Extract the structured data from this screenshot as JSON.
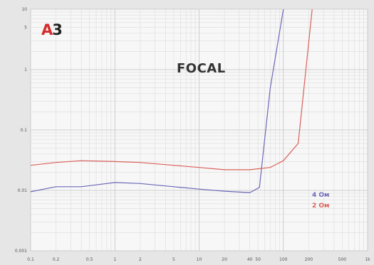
{
  "logo": {
    "letter": "A",
    "digit": "3"
  },
  "colors": {
    "series_4": "#6b68b8",
    "series_2": "#d9605a",
    "grid": "#c2c2c2",
    "text": "#555555"
  },
  "chart_data": {
    "type": "line",
    "title": "FOCAL",
    "xlabel": "",
    "ylabel": "",
    "x_scale": "log",
    "y_scale": "log",
    "xlim": [
      0.1,
      1000
    ],
    "ylim": [
      0.001,
      10
    ],
    "x_ticks": [
      {
        "v": 0.1,
        "label": "0.1"
      },
      {
        "v": 0.2,
        "label": "0.2"
      },
      {
        "v": 0.5,
        "label": "0.5"
      },
      {
        "v": 1,
        "label": "1"
      },
      {
        "v": 2,
        "label": "2"
      },
      {
        "v": 5,
        "label": "5"
      },
      {
        "v": 10,
        "label": "10"
      },
      {
        "v": 20,
        "label": "20"
      },
      {
        "v": 40,
        "label": "40"
      },
      {
        "v": 50,
        "label": "50"
      },
      {
        "v": 100,
        "label": "100"
      },
      {
        "v": 200,
        "label": "200"
      },
      {
        "v": 500,
        "label": "500"
      },
      {
        "v": 1000,
        "label": "1k"
      }
    ],
    "y_ticks": [
      {
        "v": 10,
        "label": "10"
      },
      {
        "v": 5,
        "label": "5"
      },
      {
        "v": 1,
        "label": "1"
      },
      {
        "v": 0.1,
        "label": "0.1"
      },
      {
        "v": 0.01,
        "label": "0.01"
      },
      {
        "v": 0.001,
        "label": "0.001"
      }
    ],
    "grid": true,
    "legend": "right",
    "series": [
      {
        "name": "4 Ом",
        "color": "#6b68b8",
        "x": [
          0.1,
          0.2,
          0.4,
          1,
          2,
          5,
          10,
          20,
          40,
          52,
          70,
          100
        ],
        "y": [
          0.0095,
          0.0115,
          0.0115,
          0.0135,
          0.013,
          0.0115,
          0.0105,
          0.0097,
          0.0092,
          0.0112,
          0.5,
          10
        ]
      },
      {
        "name": "2 Ом",
        "color": "#d9605a",
        "x": [
          0.1,
          0.2,
          0.4,
          1,
          2,
          5,
          10,
          20,
          40,
          70,
          100,
          150,
          220
        ],
        "y": [
          0.026,
          0.029,
          0.031,
          0.03,
          0.029,
          0.026,
          0.024,
          0.022,
          0.022,
          0.024,
          0.031,
          0.06,
          10
        ]
      }
    ]
  }
}
